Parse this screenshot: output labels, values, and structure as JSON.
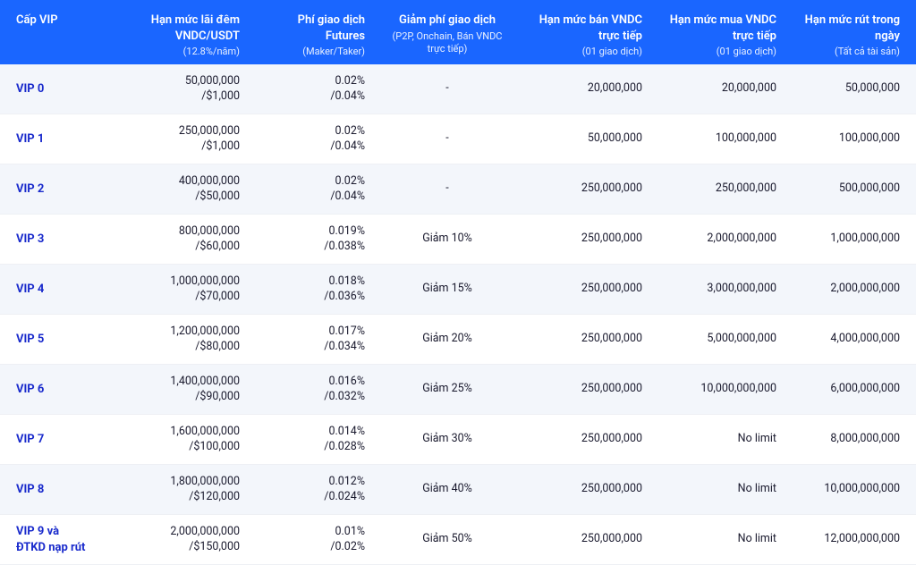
{
  "colors": {
    "header_bg": "#1a66ff",
    "header_text": "#ffffff",
    "row_alt_bg": "#f3f6fb",
    "vip_label": "#1a2bcc",
    "text": "#1a1a2e",
    "border": "#eef0f4"
  },
  "columns": [
    {
      "title": "Cấp VIP",
      "sub": ""
    },
    {
      "title": "Hạn mức lãi đêm VNDC/USDT",
      "sub": "(12.8%/năm)"
    },
    {
      "title": "Phí giao dịch Futures",
      "sub": "(Maker/Taker)"
    },
    {
      "title": "Giảm phí giao dịch",
      "sub": "(P2P, Onchain, Bán VNDC trực tiếp)"
    },
    {
      "title": "Hạn mức bán VNDC trực tiếp",
      "sub": "(01 giao dịch)"
    },
    {
      "title": "Hạn mức mua VNDC trực tiếp",
      "sub": "(01 giao dịch)"
    },
    {
      "title": "Hạn mức rút trong ngày",
      "sub": "(Tất cả tài sản)"
    }
  ],
  "rows": [
    {
      "level": "VIP 0",
      "limit_l1": "50,000,000",
      "limit_l2": "/$1,000",
      "fee_l1": "0.02%",
      "fee_l2": "/0.04%",
      "discount": "-",
      "sell": "20,000,000",
      "buy": "20,000,000",
      "withdraw": "50,000,000"
    },
    {
      "level": "VIP 1",
      "limit_l1": "250,000,000",
      "limit_l2": "/$1,000",
      "fee_l1": "0.02%",
      "fee_l2": "/0.04%",
      "discount": "-",
      "sell": "50,000,000",
      "buy": "100,000,000",
      "withdraw": "100,000,000"
    },
    {
      "level": "VIP 2",
      "limit_l1": "400,000,000",
      "limit_l2": "/$50,000",
      "fee_l1": "0.02%",
      "fee_l2": "/0.04%",
      "discount": "-",
      "sell": "250,000,000",
      "buy": "250,000,000",
      "withdraw": "500,000,000"
    },
    {
      "level": "VIP 3",
      "limit_l1": "800,000,000",
      "limit_l2": "/$60,000",
      "fee_l1": "0.019%",
      "fee_l2": "/0.038%",
      "discount": "Giảm 10%",
      "sell": "250,000,000",
      "buy": "2,000,000,000",
      "withdraw": "1,000,000,000"
    },
    {
      "level": "VIP 4",
      "limit_l1": "1,000,000,000",
      "limit_l2": "/$70,000",
      "fee_l1": "0.018%",
      "fee_l2": "/0.036%",
      "discount": "Giảm 15%",
      "sell": "250,000,000",
      "buy": "3,000,000,000",
      "withdraw": "2,000,000,000"
    },
    {
      "level": "VIP 5",
      "limit_l1": "1,200,000,000",
      "limit_l2": "/$80,000",
      "fee_l1": "0.017%",
      "fee_l2": "/0.034%",
      "discount": "Giảm 20%",
      "sell": "250,000,000",
      "buy": "5,000,000,000",
      "withdraw": "4,000,000,000"
    },
    {
      "level": "VIP 6",
      "limit_l1": "1,400,000,000",
      "limit_l2": "/$90,000",
      "fee_l1": "0.016%",
      "fee_l2": "/0.032%",
      "discount": "Giảm 25%",
      "sell": "250,000,000",
      "buy": "10,000,000,000",
      "withdraw": "6,000,000,000"
    },
    {
      "level": "VIP 7",
      "limit_l1": "1,600,000,000",
      "limit_l2": "/$100,000",
      "fee_l1": "0.014%",
      "fee_l2": "/0.028%",
      "discount": "Giảm 30%",
      "sell": "250,000,000",
      "buy": "No limit",
      "withdraw": "8,000,000,000"
    },
    {
      "level": "VIP 8",
      "limit_l1": "1,800,000,000",
      "limit_l2": "/$120,000",
      "fee_l1": "0.012%",
      "fee_l2": "/0.024%",
      "discount": "Giảm 40%",
      "sell": "250,000,000",
      "buy": "No limit",
      "withdraw": "10,000,000,000"
    },
    {
      "level": "VIP 9 và ĐTKD nạp rút",
      "limit_l1": "2,000,000,000",
      "limit_l2": "/$150,000",
      "fee_l1": "0.01%",
      "fee_l2": "/0.02%",
      "discount": "Giảm 50%",
      "sell": "250,000,000",
      "buy": "No limit",
      "withdraw": "12,000,000,000"
    }
  ]
}
